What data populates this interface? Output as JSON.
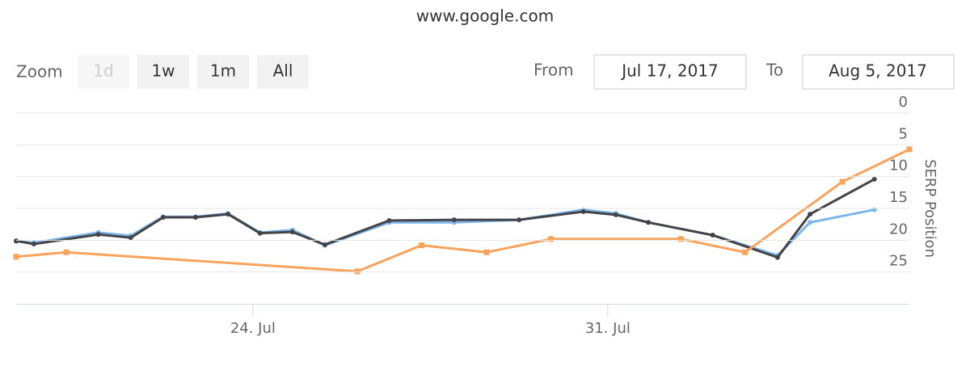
{
  "chart_data": {
    "type": "line",
    "title": "www.google.com",
    "range_selector": {
      "zoom_label": "Zoom",
      "buttons": [
        "1d",
        "1w",
        "1m",
        "All"
      ],
      "disabled_buttons": [
        0
      ],
      "from_label": "From",
      "from": "Jul 17, 2017",
      "to_label": "To",
      "to": "Aug 5, 2017"
    },
    "y_label": "SERP Position",
    "reversed": true,
    "grid": true,
    "ylim": [
      0,
      30
    ],
    "yticks": [
      0,
      5,
      10,
      15,
      20,
      25
    ],
    "xlim": [
      19.33,
      36.95
    ],
    "xticks": [
      {
        "value": 24,
        "label": "24. Jul"
      },
      {
        "value": 31,
        "label": "31. Jul"
      }
    ],
    "series": [
      {
        "color": "#7cb5ec",
        "marker": "circle",
        "x": [
          19.33,
          19.68,
          20.95,
          21.59,
          22.23,
          22.87,
          23.51,
          24.14,
          24.78,
          25.42,
          26.69,
          27.97,
          29.25,
          30.52,
          31.16,
          31.8,
          33.07,
          34.35,
          34.99,
          36.26
        ],
        "values": [
          20.2,
          20.4,
          18.8,
          19.3,
          16.3,
          16.3,
          15.8,
          18.8,
          18.4,
          20.8,
          17.2,
          17.2,
          16.8,
          15.2,
          15.8,
          17.2,
          19.2,
          22.4,
          17.2,
          15.2
        ]
      },
      {
        "color": "#434348",
        "marker": "circle",
        "x": [
          19.33,
          19.68,
          20.95,
          21.59,
          22.23,
          22.87,
          23.51,
          24.14,
          24.78,
          25.42,
          26.69,
          27.97,
          29.25,
          30.52,
          31.16,
          31.8,
          33.07,
          34.35,
          34.99,
          36.26
        ],
        "values": [
          20.1,
          20.6,
          19.1,
          19.6,
          16.4,
          16.4,
          15.9,
          18.9,
          18.7,
          20.7,
          16.9,
          16.8,
          16.8,
          15.5,
          16.0,
          17.2,
          19.2,
          22.7,
          15.9,
          10.4
        ]
      },
      {
        "color": "#f7a35c",
        "marker": "square",
        "x": [
          19.33,
          20.32,
          26.06,
          27.33,
          28.61,
          29.88,
          32.44,
          33.71,
          35.63,
          36.95
        ],
        "values": [
          22.6,
          21.9,
          24.9,
          20.8,
          21.9,
          19.8,
          19.8,
          21.9,
          10.8,
          5.7
        ]
      }
    ]
  }
}
